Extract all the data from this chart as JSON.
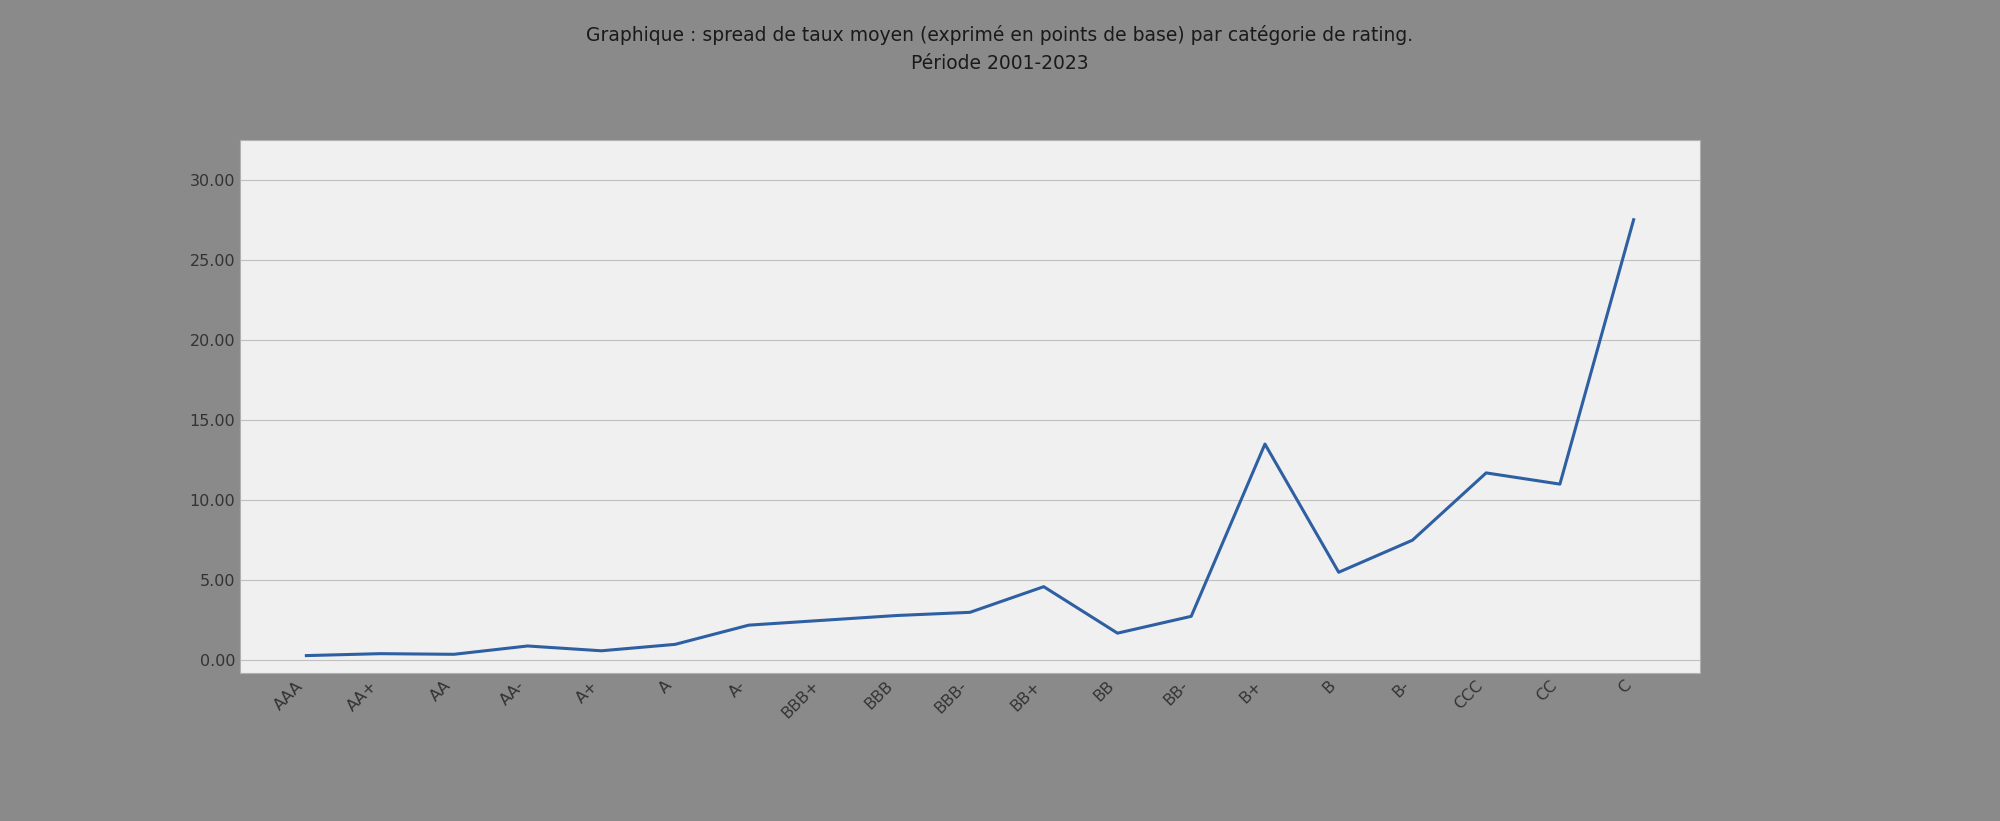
{
  "title_line1": "Graphique : spread de taux moyen (exprimé en points de base) par catégorie de rating.",
  "title_line2": "Période 2001-2023",
  "categories": [
    "AAA",
    "AA+",
    "AA",
    "AA-",
    "A+",
    "A",
    "A-",
    "BBB+",
    "BBB",
    "BBB-",
    "BB+",
    "BB",
    "BB-",
    "B+",
    "B",
    "B-",
    "CCC",
    "CC",
    "C"
  ],
  "values": [
    0.3,
    0.42,
    0.38,
    0.9,
    0.6,
    1.0,
    2.2,
    2.5,
    2.8,
    3.0,
    4.6,
    1.7,
    2.75,
    13.5,
    5.5,
    7.5,
    11.7,
    11.0,
    27.5
  ],
  "line_color": "#2E5FA3",
  "line_width": 2.2,
  "yticks": [
    0.0,
    5.0,
    10.0,
    15.0,
    20.0,
    25.0,
    30.0
  ],
  "ylim": [
    -0.8,
    32.5
  ],
  "outer_bg_color": "#8a8a8a",
  "plot_bg_color": "#f0f0f0",
  "grid_color": "#c0c0c0",
  "tick_label_fontsize": 11.5,
  "title_fontsize": 13.5,
  "title_color": "#1a1a1a"
}
